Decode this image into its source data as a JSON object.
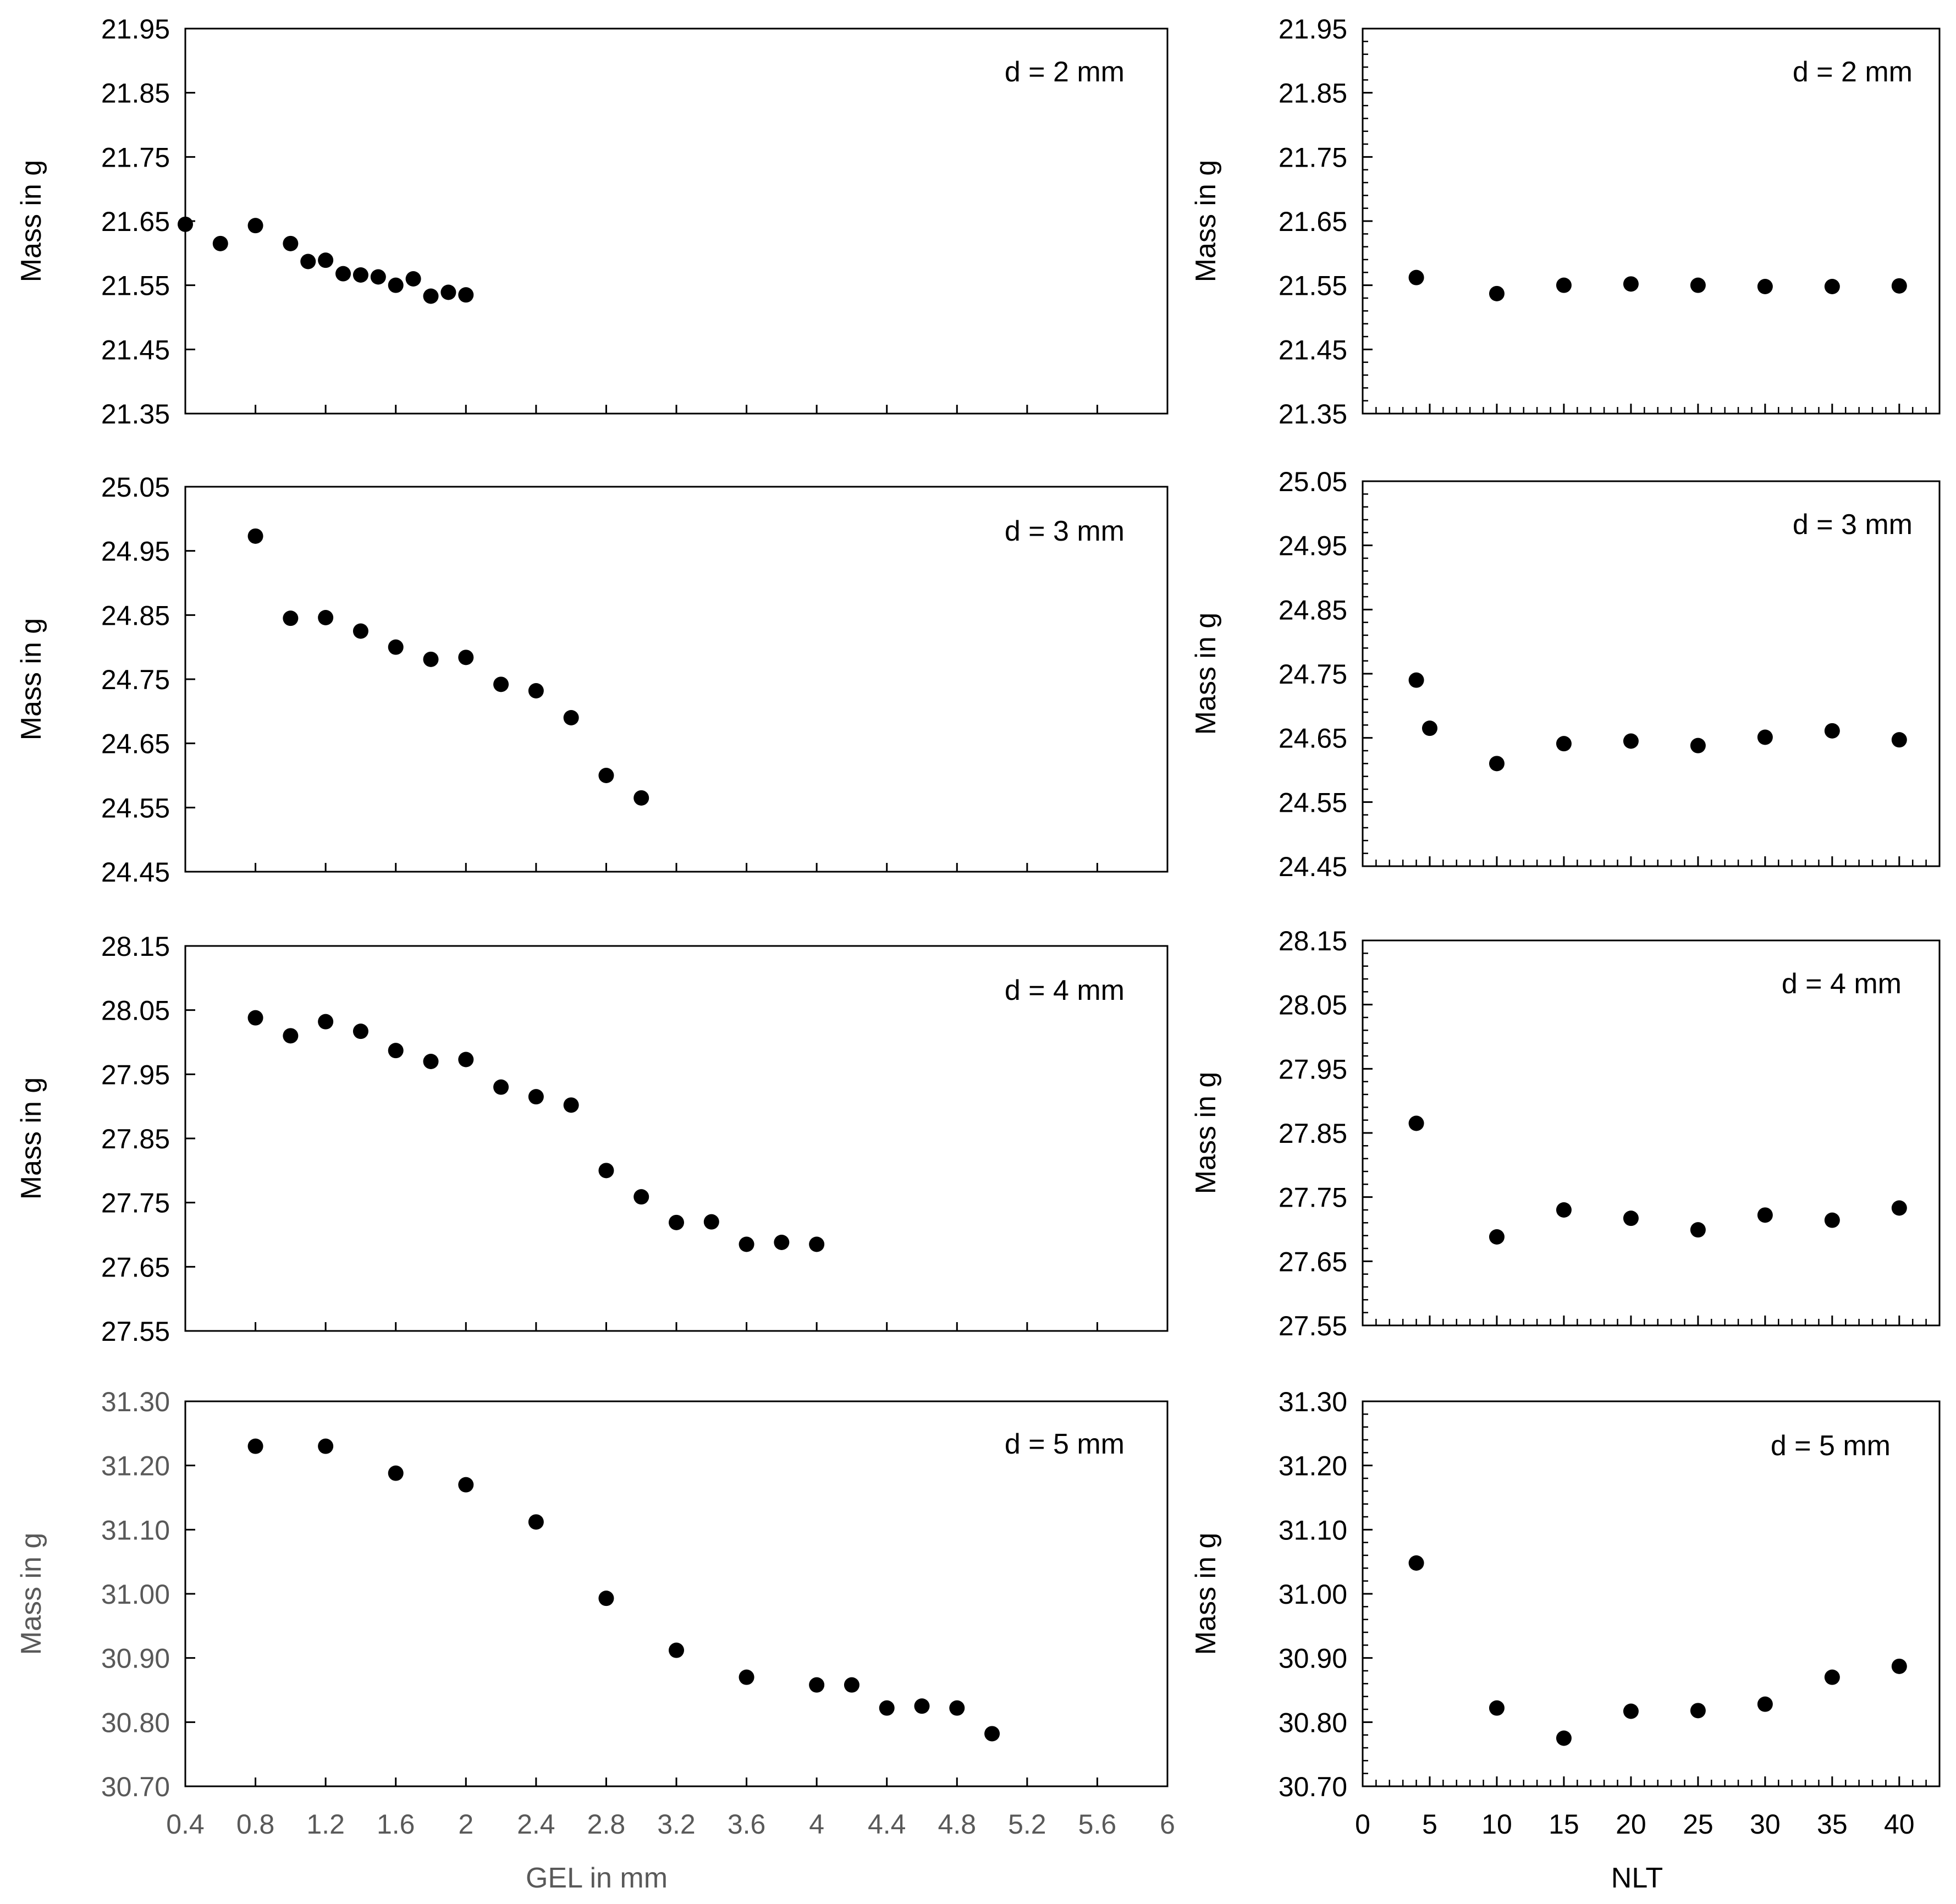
{
  "chart_data": [
    {
      "type": "scatter",
      "panel": "left-1",
      "title": "",
      "annotation": "d = 2 mm",
      "xlabel": "",
      "ylabel": "Mass in g",
      "xlim": [
        0.4,
        6.0
      ],
      "ylim": [
        21.35,
        21.95
      ],
      "yticks": [
        "21.35",
        "21.45",
        "21.55",
        "21.65",
        "21.75",
        "21.85",
        "21.95"
      ],
      "xticks": [],
      "series": [
        {
          "name": "d = 2 mm",
          "x": [
            0.4,
            0.6,
            0.8,
            1.0,
            1.1,
            1.2,
            1.3,
            1.4,
            1.5,
            1.6,
            1.7,
            1.8,
            1.9,
            2.0
          ],
          "y": [
            21.645,
            21.615,
            21.643,
            21.615,
            21.587,
            21.589,
            21.568,
            21.566,
            21.563,
            21.55,
            21.56,
            21.533,
            21.539,
            21.535
          ]
        }
      ]
    },
    {
      "type": "scatter",
      "panel": "left-2",
      "title": "",
      "annotation": "d = 3 mm",
      "xlabel": "",
      "ylabel": "Mass in g",
      "xlim": [
        0.4,
        6.0
      ],
      "ylim": [
        24.45,
        25.05
      ],
      "yticks": [
        "24.45",
        "24.55",
        "24.65",
        "24.75",
        "24.85",
        "24.95",
        "25.05"
      ],
      "xticks": [],
      "series": [
        {
          "name": "d = 3 mm",
          "x": [
            0.8,
            1.0,
            1.2,
            1.4,
            1.6,
            1.8,
            2.0,
            2.2,
            2.4,
            2.6,
            2.8,
            3.0
          ],
          "y": [
            24.973,
            24.845,
            24.846,
            24.825,
            24.8,
            24.781,
            24.784,
            24.742,
            24.732,
            24.69,
            24.6,
            24.565
          ]
        }
      ]
    },
    {
      "type": "scatter",
      "panel": "left-3",
      "title": "",
      "annotation": "d = 4 mm",
      "xlabel": "",
      "ylabel": "Mass in g",
      "xlim": [
        0.4,
        6.0
      ],
      "ylim": [
        27.55,
        28.15
      ],
      "yticks": [
        "27.55",
        "27.65",
        "27.75",
        "27.85",
        "27.95",
        "28.05",
        "28.15"
      ],
      "xticks": [],
      "series": [
        {
          "name": "d = 4 mm",
          "x": [
            0.8,
            1.0,
            1.2,
            1.4,
            1.6,
            1.8,
            2.0,
            2.2,
            2.4,
            2.6,
            2.8,
            3.0,
            3.2,
            3.4,
            3.6,
            3.8,
            4.0
          ],
          "y": [
            28.038,
            28.01,
            28.032,
            28.017,
            27.987,
            27.97,
            27.973,
            27.93,
            27.915,
            27.902,
            27.8,
            27.759,
            27.719,
            27.72,
            27.685,
            27.688,
            27.685
          ]
        }
      ]
    },
    {
      "type": "scatter",
      "panel": "left-4",
      "title": "",
      "annotation": "d = 5 mm",
      "xlabel": "GEL in mm",
      "ylabel": "Mass in g",
      "xlim": [
        0.4,
        6.0
      ],
      "ylim": [
        30.7,
        31.3
      ],
      "yticks": [
        "30.70",
        "30.80",
        "30.90",
        "31.00",
        "31.10",
        "31.20",
        "31.30"
      ],
      "xticks": [
        "0.4",
        "0.8",
        "1.2",
        "1.6",
        "2",
        "2.4",
        "2.8",
        "3.2",
        "3.6",
        "4",
        "4.4",
        "4.8",
        "5.2",
        "5.6",
        "6"
      ],
      "series": [
        {
          "name": "d = 5 mm",
          "x": [
            0.8,
            1.2,
            1.6,
            2.0,
            2.4,
            2.8,
            3.2,
            3.6,
            4.0,
            4.2,
            4.4,
            4.6,
            4.8,
            5.0
          ],
          "y": [
            31.23,
            31.23,
            31.188,
            31.17,
            31.112,
            30.993,
            30.912,
            30.87,
            30.858,
            30.858,
            30.822,
            30.825,
            30.822,
            30.782
          ]
        }
      ]
    },
    {
      "type": "scatter",
      "panel": "right-1",
      "title": "",
      "annotation": "d = 2 mm",
      "xlabel": "",
      "ylabel": "Mass in g",
      "xlim": [
        0,
        43
      ],
      "ylim": [
        21.35,
        21.95
      ],
      "yticks": [
        "21.35",
        "21.45",
        "21.55",
        "21.65",
        "21.75",
        "21.85",
        "21.95"
      ],
      "xticks": [],
      "series": [
        {
          "name": "d = 2 mm",
          "x": [
            4,
            10,
            15,
            20,
            25,
            30,
            35,
            40
          ],
          "y": [
            21.562,
            21.537,
            21.55,
            21.552,
            21.55,
            21.548,
            21.548,
            21.549
          ]
        }
      ]
    },
    {
      "type": "scatter",
      "panel": "right-2",
      "title": "",
      "annotation": "d = 3 mm",
      "xlabel": "",
      "ylabel": "Mass in g",
      "xlim": [
        0,
        43
      ],
      "ylim": [
        24.45,
        25.05
      ],
      "yticks": [
        "24.45",
        "24.55",
        "24.65",
        "24.75",
        "24.85",
        "24.95",
        "25.05"
      ],
      "xticks": [],
      "series": [
        {
          "name": "d = 3 mm",
          "x": [
            4,
            5,
            10,
            15,
            20,
            25,
            30,
            35,
            40
          ],
          "y": [
            24.74,
            24.665,
            24.61,
            24.641,
            24.645,
            24.638,
            24.651,
            24.661,
            24.647
          ]
        }
      ]
    },
    {
      "type": "scatter",
      "panel": "right-3",
      "title": "",
      "annotation": "d = 4 mm",
      "xlabel": "",
      "ylabel": "Mass in g",
      "xlim": [
        0,
        43
      ],
      "ylim": [
        27.55,
        28.15
      ],
      "yticks": [
        "27.55",
        "27.65",
        "27.75",
        "27.85",
        "27.95",
        "28.05",
        "28.15"
      ],
      "xticks": [],
      "series": [
        {
          "name": "d = 4 mm",
          "x": [
            4,
            10,
            15,
            20,
            25,
            30,
            35,
            40
          ],
          "y": [
            27.865,
            27.688,
            27.73,
            27.717,
            27.699,
            27.722,
            27.714,
            27.733
          ]
        }
      ]
    },
    {
      "type": "scatter",
      "panel": "right-4",
      "title": "",
      "annotation": "d = 5 mm",
      "xlabel": "NLT",
      "ylabel": "Mass in g",
      "xlim": [
        0,
        43
      ],
      "ylim": [
        30.7,
        31.3
      ],
      "yticks": [
        "30.70",
        "30.80",
        "30.90",
        "31.00",
        "31.10",
        "31.20",
        "31.30"
      ],
      "xticks": [
        "0",
        "5",
        "10",
        "15",
        "20",
        "25",
        "30",
        "35",
        "40"
      ],
      "series": [
        {
          "name": "d = 5 mm",
          "x": [
            4,
            10,
            15,
            20,
            25,
            30,
            35,
            40
          ],
          "y": [
            31.048,
            30.822,
            30.775,
            30.817,
            30.818,
            30.828,
            30.87,
            30.887
          ]
        }
      ]
    }
  ],
  "colors": {
    "marker": "#000000",
    "axis": "#000000",
    "tick_text_dark": "#000000",
    "tick_text_gray": "#595959",
    "background": "#ffffff"
  }
}
